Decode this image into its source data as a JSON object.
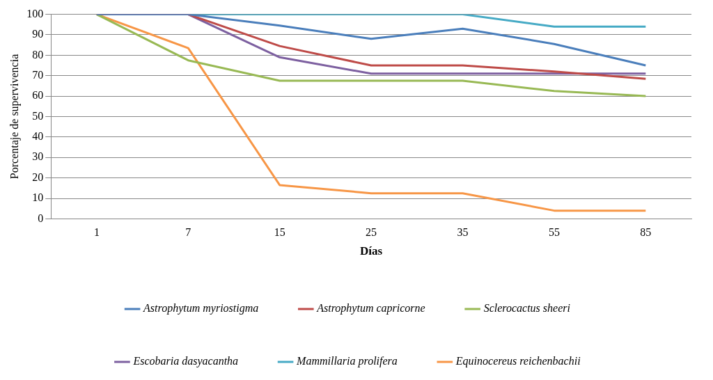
{
  "chart_data": {
    "type": "line",
    "xlabel": "Días",
    "ylabel": "Porcentaje de supervivencia",
    "categories": [
      "1",
      "7",
      "15",
      "25",
      "35",
      "55",
      "85"
    ],
    "series": [
      {
        "name": "Astrophytum myriostigma",
        "color": "#4a7ebb",
        "values": [
          100,
          100,
          94.5,
          88,
          93,
          85.5,
          75
        ]
      },
      {
        "name": "Astrophytum capricorne",
        "color": "#be4b48",
        "values": [
          100,
          100,
          84.5,
          75,
          75,
          72,
          68.5
        ]
      },
      {
        "name": "Sclerocactus sheeri",
        "color": "#98b954",
        "values": [
          100,
          77.5,
          67.5,
          67.5,
          67.5,
          62.5,
          60
        ]
      },
      {
        "name": "Escobaria dasyacantha",
        "color": "#7d60a0",
        "values": [
          100,
          100,
          79,
          71,
          71,
          71,
          71
        ]
      },
      {
        "name": "Mammillaria prolifera",
        "color": "#46aac5",
        "values": [
          100,
          100,
          100,
          100,
          100,
          94,
          94
        ]
      },
      {
        "name": "Equinocereus reichenbachii",
        "color": "#f79646",
        "values": [
          100,
          83.5,
          16.5,
          12.5,
          12.5,
          4,
          4
        ]
      }
    ],
    "ylim": [
      0,
      100
    ],
    "yticks": [
      0,
      10,
      20,
      30,
      40,
      50,
      60,
      70,
      80,
      90,
      100
    ],
    "grid": "y",
    "legend": "bottom",
    "marker": "none",
    "line_style": "solid"
  }
}
